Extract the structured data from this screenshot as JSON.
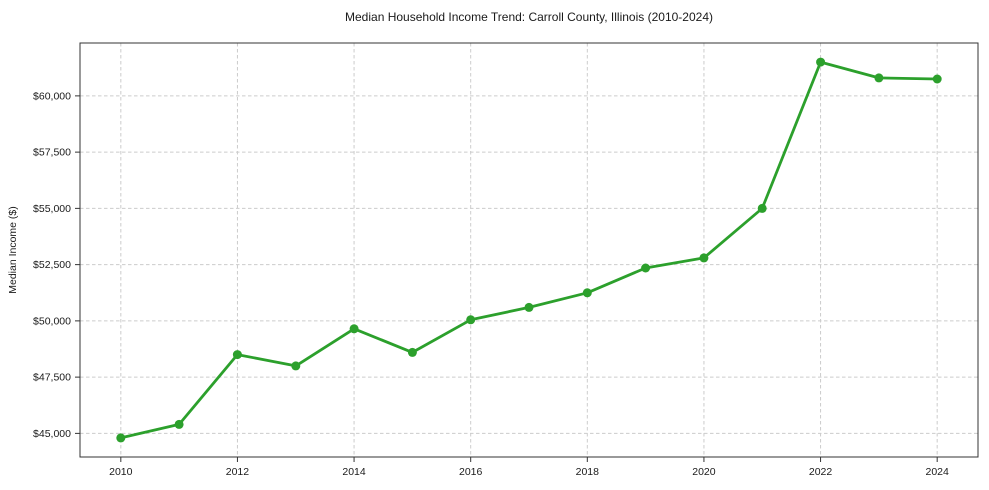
{
  "chart_data": {
    "type": "line",
    "title": "Median Household Income Trend: Carroll County, Illinois (2010-2024)",
    "xlabel": "",
    "ylabel": "Median Income ($)",
    "x": [
      2010,
      2011,
      2012,
      2013,
      2014,
      2015,
      2016,
      2017,
      2018,
      2019,
      2020,
      2021,
      2022,
      2023,
      2024
    ],
    "series": [
      {
        "name": "Median Household Income",
        "values": [
          44800,
          45400,
          48500,
          48000,
          49650,
          48600,
          50050,
          50600,
          51250,
          52350,
          52800,
          55000,
          61500,
          60800,
          60750
        ]
      }
    ],
    "x_ticks": [
      2010,
      2012,
      2014,
      2016,
      2018,
      2020,
      2022,
      2024
    ],
    "y_ticks": [
      45000,
      47500,
      50000,
      52500,
      55000,
      57500,
      60000
    ],
    "y_tick_prefix": "$",
    "xlim": [
      2009.3,
      2024.7
    ],
    "ylim": [
      43950,
      62350
    ],
    "grid": true,
    "grid_style": "dashed",
    "legend_position": "none",
    "line_color": "#2ca02c",
    "marker": "circle",
    "grid_color": "#cccccc",
    "spine_color": "#333333",
    "background": "#ffffff"
  }
}
